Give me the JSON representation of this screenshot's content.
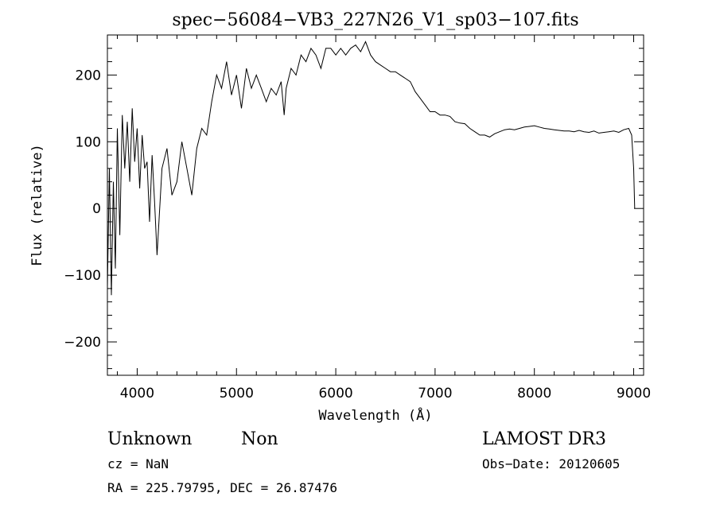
{
  "chart_data": {
    "type": "line",
    "title": "spec−56084−VB3_227N26_V1_sp03−107.fits",
    "xlabel": "Wavelength (Å)",
    "ylabel": "Flux (relative)",
    "xlim": [
      3700,
      9100
    ],
    "ylim": [
      -250,
      260
    ],
    "xticks": [
      4000,
      5000,
      6000,
      7000,
      8000,
      9000
    ],
    "xtick_labels": [
      "4000",
      "5000",
      "6000",
      "7000",
      "8000",
      "9000"
    ],
    "yticks": [
      -200,
      -100,
      0,
      100,
      200
    ],
    "ytick_labels": [
      "−200",
      "−100",
      "0",
      "100",
      "200"
    ],
    "grid": false,
    "series": [
      {
        "x": [
          3700,
          3720,
          3740,
          3760,
          3780,
          3800,
          3825,
          3850,
          3875,
          3900,
          3925,
          3950,
          3975,
          4000,
          4025,
          4050,
          4075,
          4100,
          4125,
          4150,
          4175,
          4200,
          4250,
          4300,
          4350,
          4400,
          4450,
          4500,
          4550,
          4600,
          4650,
          4700,
          4750,
          4800,
          4850,
          4900,
          4950,
          5000,
          5050,
          5100,
          5150,
          5200,
          5250,
          5300,
          5350,
          5400,
          5450,
          5480,
          5500,
          5550,
          5600,
          5650,
          5700,
          5750,
          5800,
          5850,
          5900,
          5950,
          6000,
          6050,
          6100,
          6150,
          6200,
          6250,
          6300,
          6350,
          6400,
          6450,
          6500,
          6550,
          6600,
          6650,
          6700,
          6750,
          6800,
          6850,
          6900,
          6950,
          7000,
          7050,
          7100,
          7150,
          7200,
          7250,
          7300,
          7350,
          7400,
          7450,
          7500,
          7550,
          7600,
          7650,
          7700,
          7750,
          7800,
          7850,
          7900,
          7950,
          8000,
          8050,
          8100,
          8150,
          8200,
          8250,
          8300,
          8350,
          8400,
          8450,
          8500,
          8550,
          8600,
          8650,
          8700,
          8750,
          8800,
          8850,
          8900,
          8950,
          8980,
          9000,
          9010
        ],
        "y": [
          -120,
          60,
          -130,
          40,
          -90,
          120,
          -40,
          140,
          60,
          130,
          40,
          150,
          70,
          120,
          30,
          110,
          60,
          70,
          -20,
          80,
          10,
          -70,
          60,
          90,
          20,
          40,
          100,
          60,
          20,
          90,
          120,
          110,
          160,
          200,
          180,
          220,
          170,
          200,
          150,
          210,
          180,
          200,
          180,
          160,
          180,
          170,
          190,
          140,
          180,
          210,
          200,
          230,
          220,
          240,
          230,
          210,
          240,
          240,
          230,
          240,
          230,
          240,
          245,
          235,
          250,
          230,
          220,
          215,
          210,
          205,
          205,
          200,
          195,
          190,
          175,
          165,
          155,
          145,
          145,
          140,
          140,
          138,
          130,
          128,
          127,
          120,
          115,
          110,
          110,
          107,
          112,
          115,
          118,
          119,
          118,
          120,
          122,
          123,
          124,
          122,
          120,
          119,
          118,
          117,
          116,
          116,
          115,
          117,
          115,
          114,
          116,
          113,
          114,
          115,
          116,
          114,
          118,
          120,
          110,
          60,
          0
        ]
      }
    ]
  },
  "info": {
    "object_class": "Unknown",
    "object_subclass": "Non",
    "survey": "LAMOST DR3",
    "cz": "cz = NaN",
    "obs_date": "Obs−Date: 20120605",
    "coords": "RA = 225.79795, DEC =  26.87476"
  }
}
